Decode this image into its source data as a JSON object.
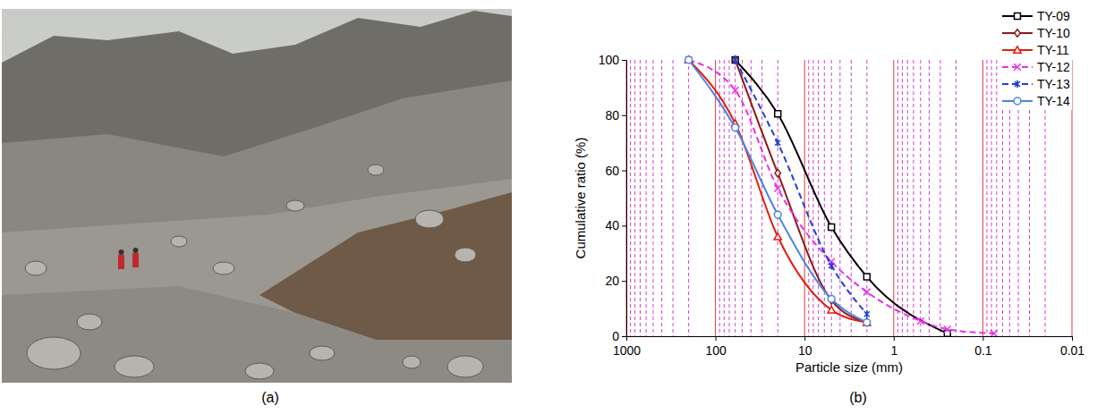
{
  "photo": {
    "label": "(a)"
  },
  "chart_data": {
    "type": "line",
    "label": "(b)",
    "x_label": "Particle size (mm)",
    "y_label": "Cumulative ratio (%)",
    "log": "x",
    "grid": true,
    "legend": "upper right",
    "xlim": [
      1000,
      0.01
    ],
    "xticks": [
      1000,
      100,
      10,
      1,
      0.1,
      0.01
    ],
    "ylim": [
      0,
      100
    ],
    "yticks": [
      0,
      20,
      40,
      60,
      80,
      100
    ],
    "series": [
      {
        "name": "TY-09",
        "color": "#000000",
        "marker": "square",
        "line_style": "solid",
        "x": [
          60,
          20,
          5,
          2,
          0.25
        ],
        "values": [
          100,
          80.5,
          39.5,
          21.5,
          1
        ]
      },
      {
        "name": "TY-10",
        "color": "#8b1a1a",
        "marker": "diamond",
        "line_style": "solid",
        "x": [
          60,
          20,
          5,
          2
        ],
        "values": [
          100,
          59,
          13,
          5
        ]
      },
      {
        "name": "TY-11",
        "color": "#e8190f",
        "marker": "triangle",
        "line_style": "solid",
        "x": [
          200,
          60,
          20,
          5,
          2
        ],
        "values": [
          100,
          77,
          36,
          9.5,
          5
        ]
      },
      {
        "name": "TY-12",
        "color": "#e633e6",
        "marker": "x",
        "line_style": "dashed",
        "x": [
          200,
          60,
          20,
          5,
          2,
          0.5,
          0.25,
          0.075
        ],
        "values": [
          100,
          89,
          53.5,
          27,
          16,
          5.5,
          2.5,
          1
        ]
      },
      {
        "name": "TY-13",
        "color": "#1f3fd6",
        "marker": "star",
        "line_style": "dashed",
        "x": [
          60,
          20,
          5,
          2
        ],
        "values": [
          100,
          70,
          25.5,
          8
        ]
      },
      {
        "name": "TY-14",
        "color": "#4a86e0",
        "marker": "circle",
        "line_style": "solid",
        "x": [
          200,
          60,
          20,
          5,
          2
        ],
        "values": [
          100,
          75.5,
          44,
          13.5,
          5
        ]
      }
    ]
  }
}
